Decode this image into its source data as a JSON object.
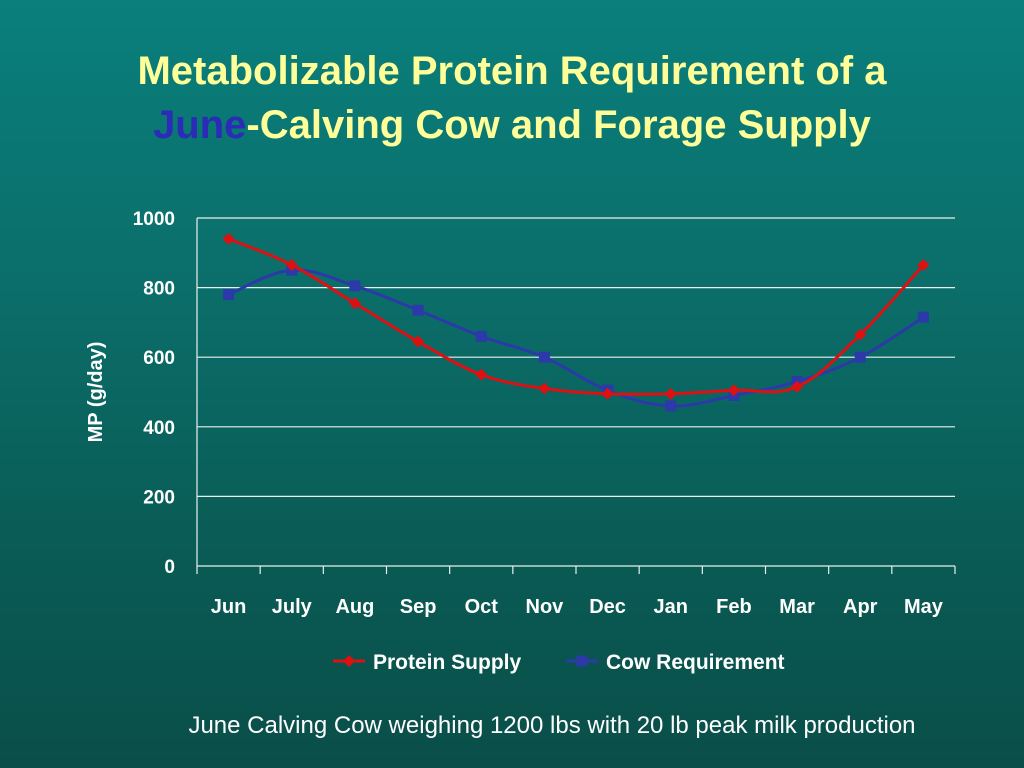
{
  "slide": {
    "title_line1": "Metabolizable Protein Requirement of a",
    "title_highlight": "June",
    "title_line2_rest": "-Calving Cow and Forage Supply",
    "caption": "June Calving Cow weighing 1200 lbs with 20 lb peak milk production"
  },
  "colors": {
    "title": "#ffff99",
    "title_highlight": "#2b2bb8",
    "protein_supply": "#dd1111",
    "cow_requirement": "#2b3aa8",
    "gridline": "#e8f0ee",
    "axis_text": "#ffffff"
  },
  "chart_data": {
    "type": "line",
    "ylabel": "MP (g/day)",
    "xlabel": "",
    "categories": [
      "Jun",
      "July",
      "Aug",
      "Sep",
      "Oct",
      "Nov",
      "Dec",
      "Jan",
      "Feb",
      "Mar",
      "Apr",
      "May"
    ],
    "ylim": [
      0,
      1000
    ],
    "yticks": [
      0,
      200,
      400,
      600,
      800,
      1000
    ],
    "grid": true,
    "legend_position": "bottom",
    "series": [
      {
        "name": "Protein Supply",
        "marker": "diamond",
        "color": "#dd1111",
        "values": [
          940,
          865,
          755,
          645,
          550,
          510,
          495,
          495,
          505,
          515,
          665,
          865
        ]
      },
      {
        "name": "Cow Requirement",
        "marker": "square",
        "color": "#2b3aa8",
        "values": [
          780,
          850,
          805,
          735,
          660,
          600,
          505,
          460,
          490,
          530,
          600,
          715
        ]
      }
    ]
  }
}
